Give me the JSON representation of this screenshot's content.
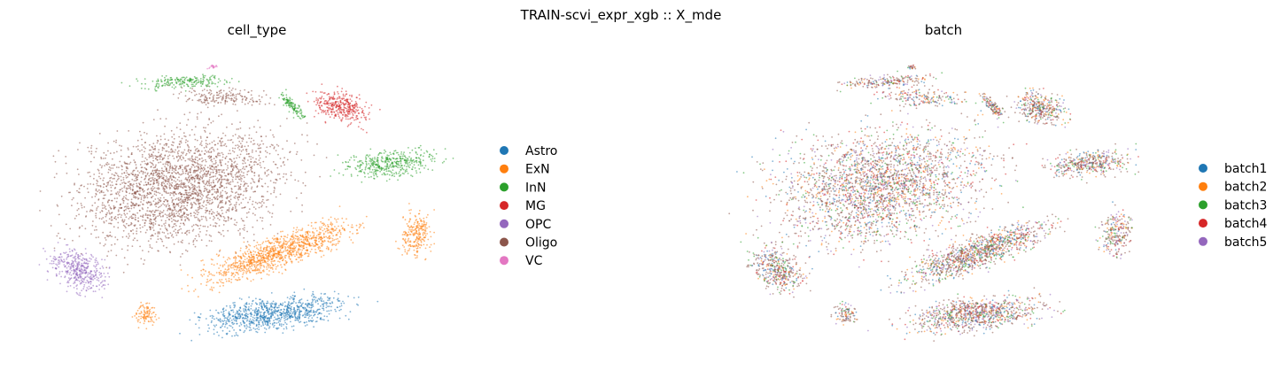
{
  "figure": {
    "suptitle": "TRAIN-scvi_expr_xgb :: X_mde"
  },
  "chart_data": [
    {
      "type": "scatter",
      "title": "cell_type",
      "xlabel": "",
      "ylabel": "",
      "grid": false,
      "axes_visible": false,
      "legend_position": "right",
      "series": [
        {
          "name": "Astro",
          "color": "#1f77b4"
        },
        {
          "name": "ExN",
          "color": "#ff7f0e"
        },
        {
          "name": "InN",
          "color": "#2ca02c"
        },
        {
          "name": "MG",
          "color": "#d62728"
        },
        {
          "name": "OPC",
          "color": "#9467bd"
        },
        {
          "name": "Oligo",
          "color": "#8c564b"
        },
        {
          "name": "VC",
          "color": "#e377c2"
        }
      ]
    },
    {
      "type": "scatter",
      "title": "batch",
      "xlabel": "",
      "ylabel": "",
      "grid": false,
      "axes_visible": false,
      "legend_position": "right",
      "series": [
        {
          "name": "batch1",
          "color": "#1f77b4"
        },
        {
          "name": "batch2",
          "color": "#ff7f0e"
        },
        {
          "name": "batch3",
          "color": "#2ca02c"
        },
        {
          "name": "batch4",
          "color": "#d62728"
        },
        {
          "name": "batch5",
          "color": "#9467bd"
        }
      ]
    }
  ]
}
